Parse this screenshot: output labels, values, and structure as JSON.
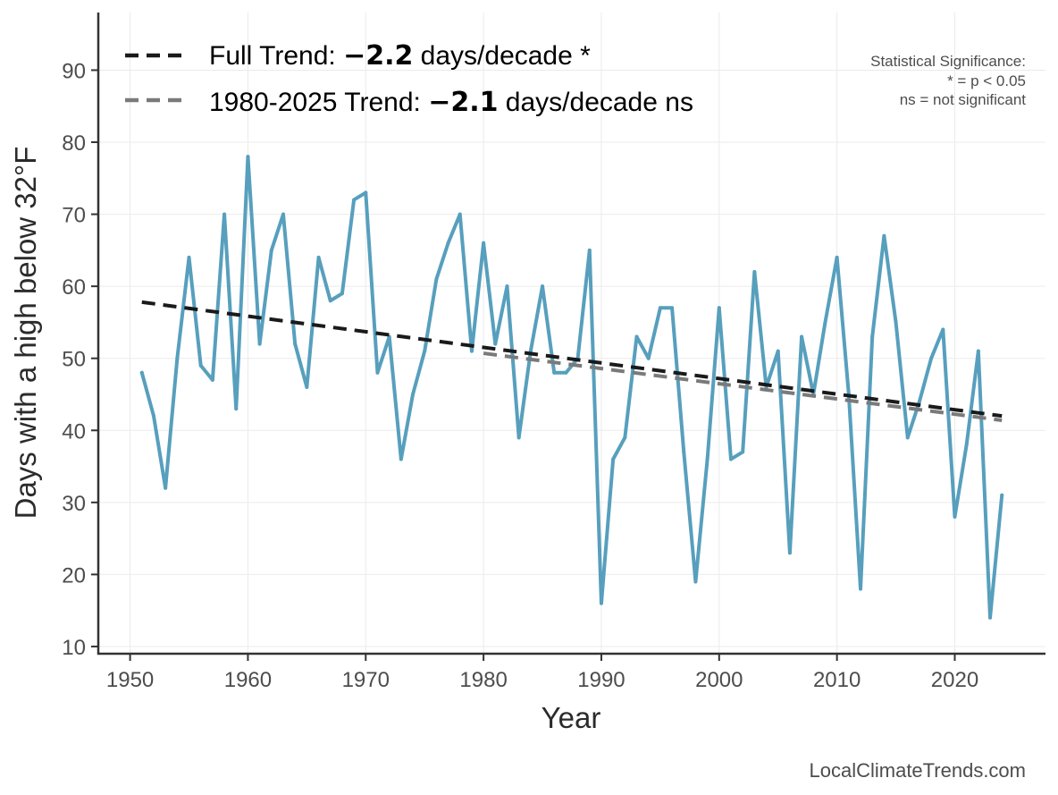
{
  "chart_data": {
    "type": "line",
    "xlabel": "Year",
    "ylabel": "Days with a high below 32°F",
    "xlim": [
      1947.3,
      2027.7
    ],
    "ylim": [
      9,
      98
    ],
    "xticks": [
      1950,
      1960,
      1970,
      1980,
      1990,
      2000,
      2010,
      2020
    ],
    "yticks": [
      10,
      20,
      30,
      40,
      50,
      60,
      70,
      80,
      90
    ],
    "grid": true,
    "legend_position": "top-left",
    "series": [
      {
        "color": "#579fbd",
        "x": [
          1951,
          1952,
          1953,
          1954,
          1955,
          1956,
          1957,
          1958,
          1959,
          1960,
          1961,
          1962,
          1963,
          1964,
          1965,
          1966,
          1967,
          1968,
          1969,
          1970,
          1971,
          1972,
          1973,
          1974,
          1975,
          1976,
          1977,
          1978,
          1979,
          1980,
          1981,
          1982,
          1983,
          1984,
          1985,
          1986,
          1987,
          1988,
          1989,
          1990,
          1991,
          1992,
          1993,
          1994,
          1995,
          1996,
          1997,
          1998,
          1999,
          2000,
          2001,
          2002,
          2003,
          2004,
          2005,
          2006,
          2007,
          2008,
          2009,
          2010,
          2011,
          2012,
          2013,
          2014,
          2015,
          2016,
          2017,
          2018,
          2019,
          2020,
          2021,
          2022,
          2023,
          2024
        ],
        "values": [
          48,
          42,
          32,
          50,
          64,
          49,
          47,
          70,
          43,
          78,
          52,
          65,
          70,
          52,
          46,
          64,
          58,
          59,
          72,
          73,
          48,
          53,
          36,
          45,
          51,
          61,
          66,
          70,
          51,
          66,
          52,
          60,
          39,
          51,
          60,
          48,
          48,
          50,
          65,
          16,
          36,
          39,
          53,
          50,
          57,
          57,
          37,
          19,
          36,
          57,
          36,
          37,
          62,
          46,
          51,
          23,
          53,
          45,
          55,
          64,
          45,
          18,
          53,
          67,
          55,
          39,
          44,
          50,
          54,
          28,
          38,
          51,
          14,
          31
        ]
      }
    ],
    "trends": [
      {
        "label_prefix": "Full Trend: ",
        "label_value": "−2.2",
        "label_suffix": " days/decade *",
        "color": "#1a1a1a",
        "x": [
          1951,
          2024
        ],
        "y": [
          57.8,
          42.0
        ]
      },
      {
        "label_prefix": "1980-2025 Trend: ",
        "label_value": "−2.1",
        "label_suffix": " days/decade ns",
        "color": "#7a7a7a",
        "x": [
          1980,
          2024
        ],
        "y": [
          50.7,
          41.4
        ]
      }
    ],
    "annotations": {
      "significance_title": "Statistical Significance:",
      "significance_p": "* = p < 0.05",
      "significance_ns": "ns = not significant"
    },
    "credit": "LocalClimateTrends.com"
  }
}
